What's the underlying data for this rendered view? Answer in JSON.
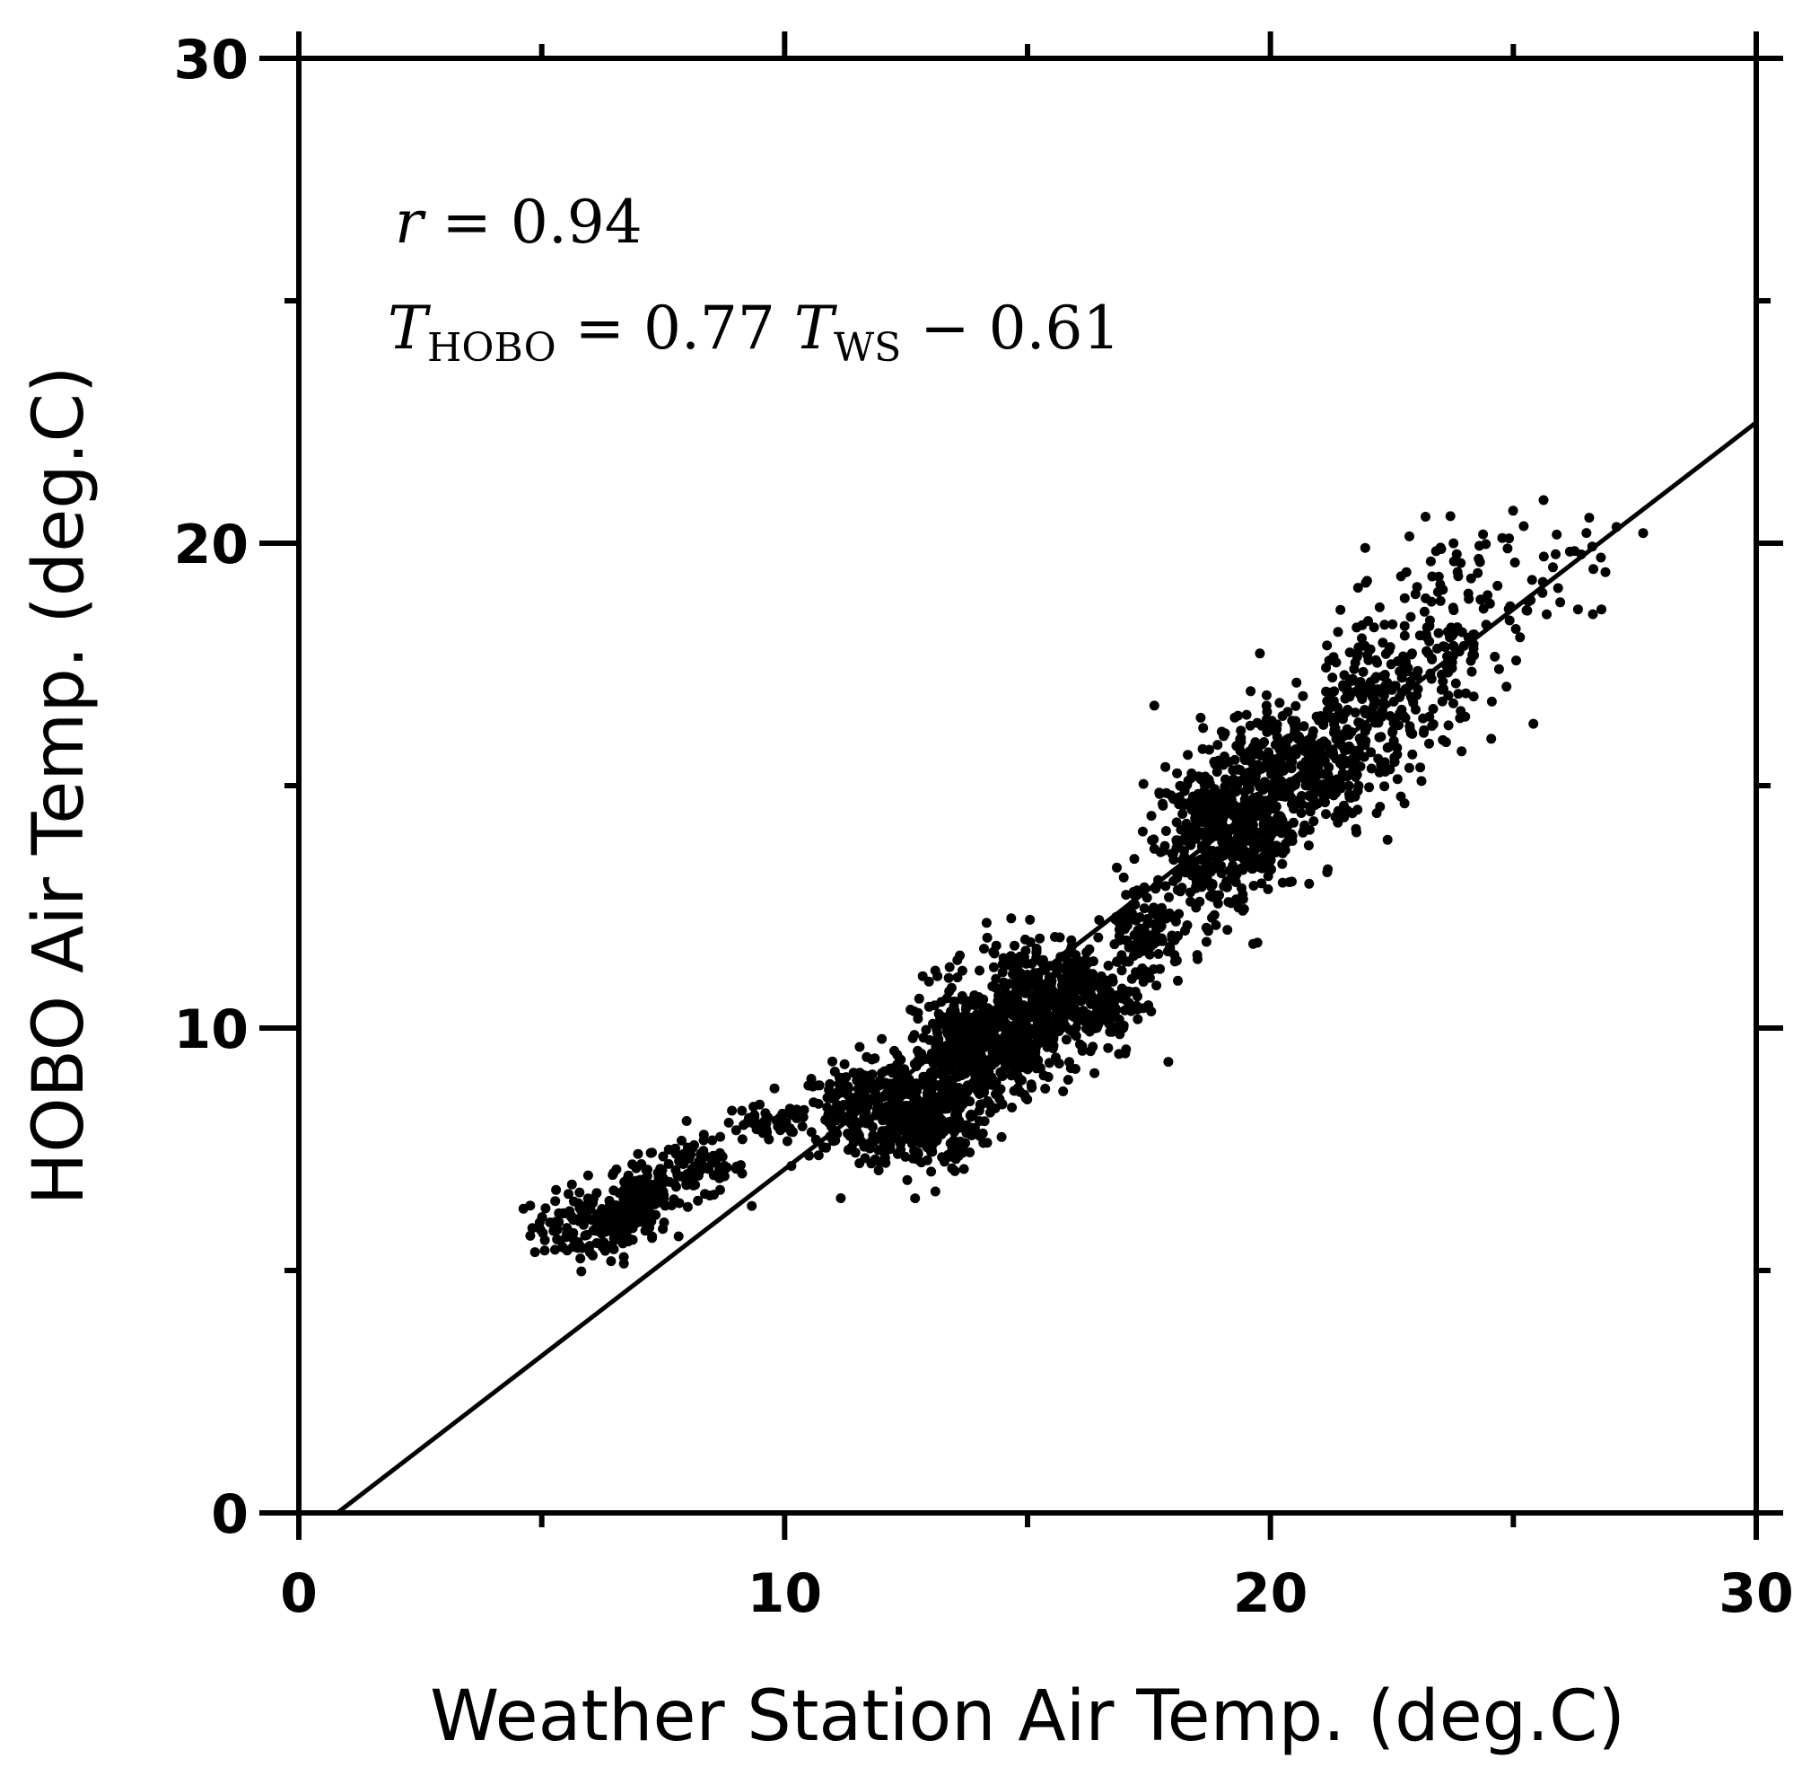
{
  "chart_data": {
    "type": "scatter",
    "title": "",
    "xlabel": "Weather Station Air Temp. (deg.C)",
    "ylabel": "HOBO Air Temp. (deg.C)",
    "xlim": [
      0,
      30
    ],
    "ylim": [
      0,
      30
    ],
    "xticks": [
      "0",
      "10",
      "20",
      "30"
    ],
    "yticks": [
      "0",
      "10",
      "20",
      "30"
    ],
    "minor_ticks": [
      5,
      15,
      25
    ],
    "grid": false,
    "annotations": {
      "r_symbol": "r",
      "r_rest": " = 0.94",
      "eq_T1": "T",
      "eq_sub1": "HOBO",
      "eq_mid": " = 0.77 ",
      "eq_T2": "T",
      "eq_sub2": "WS",
      "eq_end": " − 0.61"
    },
    "fit_line": {
      "slope": 0.77,
      "intercept": -0.61,
      "x_range": [
        0.8,
        30
      ]
    },
    "clusters": [
      {
        "x": 6.0,
        "y": 5.9,
        "sx": 0.6,
        "sy": 0.35,
        "n": 140
      },
      {
        "x": 7.0,
        "y": 6.5,
        "sx": 0.3,
        "sy": 0.4,
        "n": 140
      },
      {
        "x": 8.2,
        "y": 7.1,
        "sx": 0.5,
        "sy": 0.3,
        "n": 90
      },
      {
        "x": 9.6,
        "y": 8.0,
        "sx": 0.5,
        "sy": 0.2,
        "n": 40
      },
      {
        "x": 11.5,
        "y": 8.3,
        "sx": 0.6,
        "sy": 0.45,
        "n": 200
      },
      {
        "x": 12.8,
        "y": 8.2,
        "sx": 0.6,
        "sy": 0.6,
        "n": 320
      },
      {
        "x": 13.8,
        "y": 9.5,
        "sx": 0.6,
        "sy": 0.7,
        "n": 380
      },
      {
        "x": 14.9,
        "y": 10.3,
        "sx": 0.5,
        "sy": 0.75,
        "n": 300
      },
      {
        "x": 16.2,
        "y": 10.6,
        "sx": 0.6,
        "sy": 0.6,
        "n": 220
      },
      {
        "x": 17.4,
        "y": 12.0,
        "sx": 0.4,
        "sy": 0.6,
        "n": 120
      },
      {
        "x": 18.6,
        "y": 13.8,
        "sx": 0.5,
        "sy": 0.8,
        "n": 260
      },
      {
        "x": 19.6,
        "y": 14.5,
        "sx": 0.5,
        "sy": 0.9,
        "n": 300
      },
      {
        "x": 20.8,
        "y": 15.4,
        "sx": 0.6,
        "sy": 0.7,
        "n": 260
      },
      {
        "x": 22.2,
        "y": 16.6,
        "sx": 0.6,
        "sy": 1.0,
        "n": 180
      },
      {
        "x": 23.5,
        "y": 18.0,
        "sx": 0.6,
        "sy": 1.0,
        "n": 120
      },
      {
        "x": 25.0,
        "y": 19.0,
        "sx": 0.8,
        "sy": 0.8,
        "n": 45
      },
      {
        "x": 26.5,
        "y": 19.8,
        "sx": 0.5,
        "sy": 0.3,
        "n": 12
      }
    ]
  }
}
